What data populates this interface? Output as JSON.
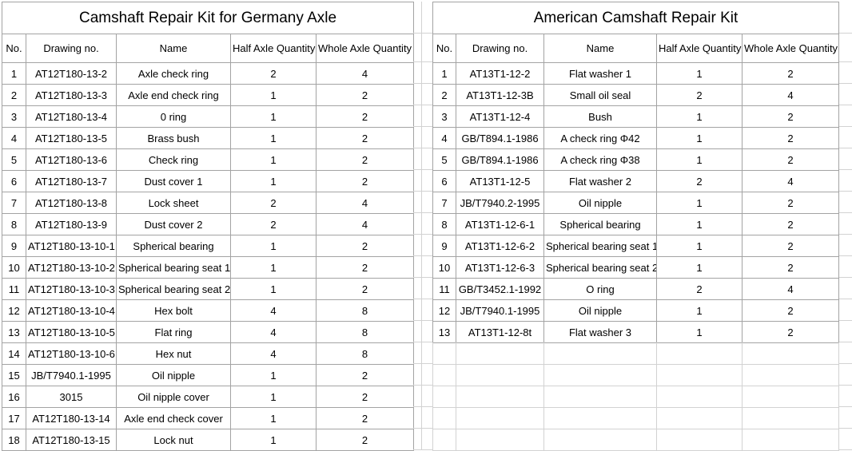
{
  "colors": {
    "table_border": "#a3a3a3",
    "gridline": "#d2d2d2",
    "text": "#000000",
    "background": "#ffffff"
  },
  "tables": [
    {
      "id": "germany",
      "title": "Camshaft Repair Kit for Germany Axle",
      "columns": [
        "No.",
        "Drawing no.",
        "Name",
        "Half Axle Quantity",
        "Whole Axle Quantity"
      ],
      "rows": [
        [
          "1",
          "AT12T180-13-2",
          "Axle check ring",
          "2",
          "4"
        ],
        [
          "2",
          "AT12T180-13-3",
          "Axle end check ring",
          "1",
          "2"
        ],
        [
          "3",
          "AT12T180-13-4",
          "0 ring",
          "1",
          "2"
        ],
        [
          "4",
          "AT12T180-13-5",
          "Brass bush",
          "1",
          "2"
        ],
        [
          "5",
          "AT12T180-13-6",
          "Check ring",
          "1",
          "2"
        ],
        [
          "6",
          "AT12T180-13-7",
          "Dust cover 1",
          "1",
          "2"
        ],
        [
          "7",
          "AT12T180-13-8",
          "Lock sheet",
          "2",
          "4"
        ],
        [
          "8",
          "AT12T180-13-9",
          "Dust cover 2",
          "2",
          "4"
        ],
        [
          "9",
          "AT12T180-13-10-1",
          "Spherical bearing",
          "1",
          "2"
        ],
        [
          "10",
          "AT12T180-13-10-2",
          "Spherical bearing seat 1",
          "1",
          "2"
        ],
        [
          "11",
          "AT12T180-13-10-3",
          "Spherical bearing seat 2",
          "1",
          "2"
        ],
        [
          "12",
          "AT12T180-13-10-4",
          "Hex bolt",
          "4",
          "8"
        ],
        [
          "13",
          "AT12T180-13-10-5",
          "Flat ring",
          "4",
          "8"
        ],
        [
          "14",
          "AT12T180-13-10-6",
          "Hex nut",
          "4",
          "8"
        ],
        [
          "15",
          "JB/T7940.1-1995",
          "Oil nipple",
          "1",
          "2"
        ],
        [
          "16",
          "3015",
          "Oil nipple cover",
          "1",
          "2"
        ],
        [
          "17",
          "AT12T180-13-14",
          "Axle end check cover",
          "1",
          "2"
        ],
        [
          "18",
          "AT12T180-13-15",
          "Lock nut",
          "1",
          "2"
        ]
      ],
      "empty_row_count": 0
    },
    {
      "id": "american",
      "title": "American Camshaft Repair Kit",
      "columns": [
        "No.",
        "Drawing no.",
        "Name",
        "Half Axle Quantity",
        "Whole Axle Quantity"
      ],
      "rows": [
        [
          "1",
          "AT13T1-12-2",
          "Flat washer 1",
          "1",
          "2"
        ],
        [
          "2",
          "AT13T1-12-3B",
          "Small oil seal",
          "2",
          "4"
        ],
        [
          "3",
          "AT13T1-12-4",
          "Bush",
          "1",
          "2"
        ],
        [
          "4",
          "GB/T894.1-1986",
          "A check ring Φ42",
          "1",
          "2"
        ],
        [
          "5",
          "GB/T894.1-1986",
          "A check ring Φ38",
          "1",
          "2"
        ],
        [
          "6",
          "AT13T1-12-5",
          "Flat washer 2",
          "2",
          "4"
        ],
        [
          "7",
          "JB/T7940.2-1995",
          "Oil nipple",
          "1",
          "2"
        ],
        [
          "8",
          "AT13T1-12-6-1",
          "Spherical bearing",
          "1",
          "2"
        ],
        [
          "9",
          "AT13T1-12-6-2",
          "Spherical bearing seat 1",
          "1",
          "2"
        ],
        [
          "10",
          "AT13T1-12-6-3",
          "Spherical bearing seat 2",
          "1",
          "2"
        ],
        [
          "11",
          "GB/T3452.1-1992",
          "O ring",
          "2",
          "4"
        ],
        [
          "12",
          "JB/T7940.1-1995",
          "Oil nipple",
          "1",
          "2"
        ],
        [
          "13",
          "AT13T1-12-8t",
          "Flat washer 3",
          "1",
          "2"
        ]
      ],
      "empty_row_count": 5
    }
  ]
}
